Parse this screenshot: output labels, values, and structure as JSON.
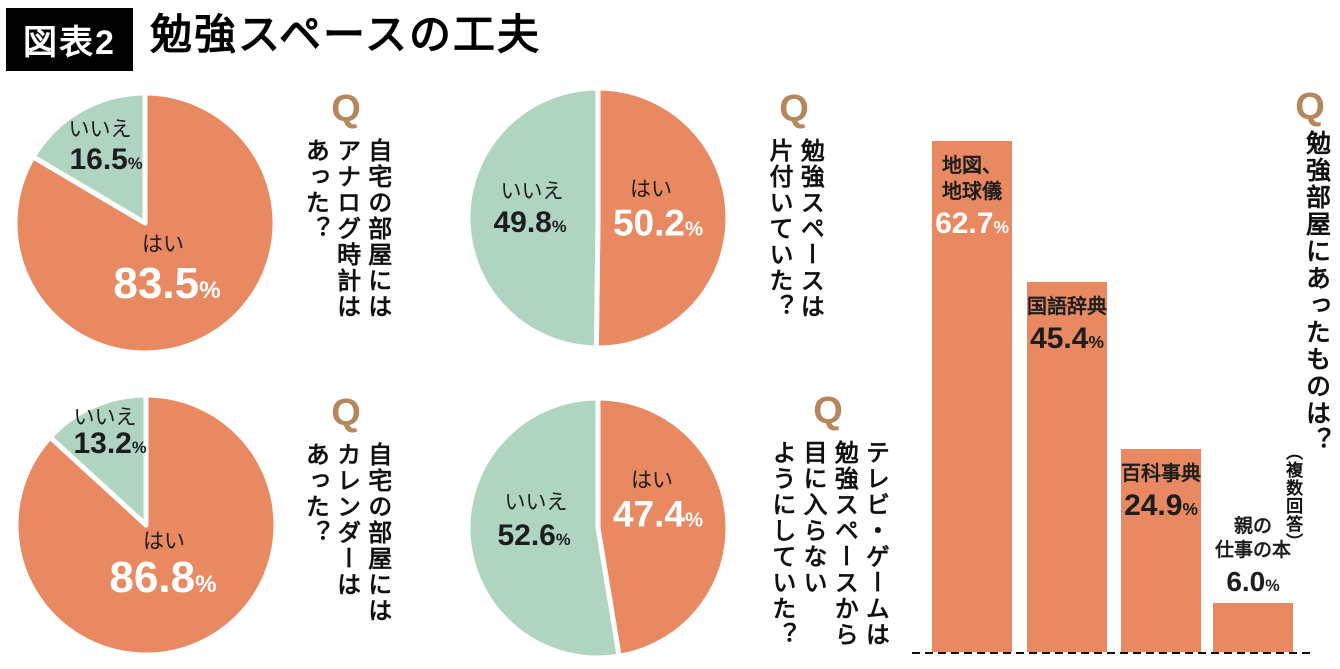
{
  "header": {
    "badge": "図表2",
    "title": "勉強スペースの工夫"
  },
  "q_mark": "Q",
  "percent_sign": "%",
  "colors": {
    "orange": "#E88962",
    "green": "#AFD5C1",
    "q_brown": "#B5875D",
    "text_dark": "#1D1D1D",
    "white": "#FFFFFF"
  },
  "chart_data": [
    {
      "id": "analog-clock",
      "type": "pie",
      "question": "自宅の部屋には\nアナログ時計は\nあった？",
      "segments": [
        {
          "label": "はい",
          "value": 83.5,
          "text": "83.5",
          "color_key": "orange"
        },
        {
          "label": "いいえ",
          "value": 16.5,
          "text": "16.5",
          "color_key": "green"
        }
      ]
    },
    {
      "id": "calendar",
      "type": "pie",
      "question": "自宅の部屋には\nカレンダーは\nあった？",
      "segments": [
        {
          "label": "はい",
          "value": 86.8,
          "text": "86.8",
          "color_key": "orange"
        },
        {
          "label": "いいえ",
          "value": 13.2,
          "text": "13.2",
          "color_key": "green"
        }
      ]
    },
    {
      "id": "tidy-space",
      "type": "pie",
      "question": "勉強スペースは\n片付いていた？",
      "segments": [
        {
          "label": "はい",
          "value": 50.2,
          "text": "50.2",
          "color_key": "orange"
        },
        {
          "label": "いいえ",
          "value": 49.8,
          "text": "49.8",
          "color_key": "green"
        }
      ]
    },
    {
      "id": "tv-game",
      "type": "pie",
      "question": "テレビ・ゲームは\n勉強スペースから\n目に入らない\nようにしていた？",
      "segments": [
        {
          "label": "はい",
          "value": 47.4,
          "text": "47.4",
          "color_key": "orange"
        },
        {
          "label": "いいえ",
          "value": 52.6,
          "text": "52.6",
          "color_key": "green"
        }
      ]
    },
    {
      "id": "room-items",
      "type": "bar",
      "orientation": "vertical",
      "question": "勉強部屋にあったものは？",
      "note": "（複数回答）",
      "categories": [
        "地図、\n地球儀",
        "国語辞典",
        "百科事典",
        "親の\n仕事の本"
      ],
      "values": [
        62.7,
        45.4,
        24.9,
        6.0
      ],
      "value_labels": [
        "62.7",
        "45.4",
        "24.9",
        "6.0"
      ],
      "value_colors": [
        "#FFFFFF",
        "#1D1D1D",
        "#1D1D1D",
        "#1D1D1D"
      ],
      "unit": "%"
    }
  ]
}
